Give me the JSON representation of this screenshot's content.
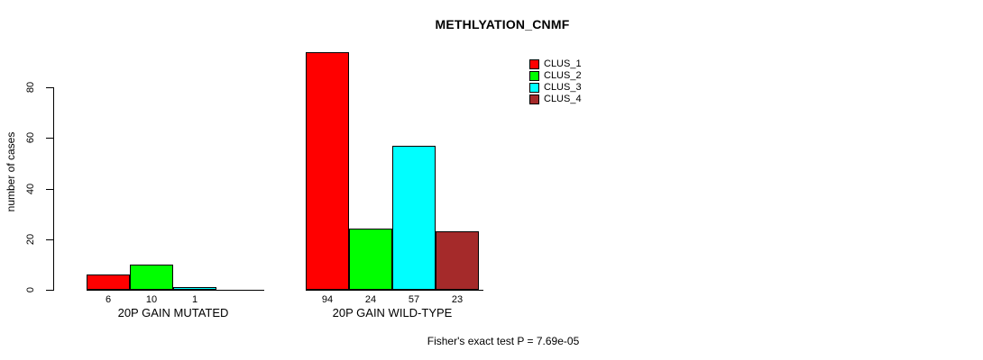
{
  "chart_data": {
    "type": "bar",
    "title": "METHLYATION_CNMF",
    "ylabel": "number of cases",
    "ylim": [
      0,
      80
    ],
    "yticks": [
      0,
      20,
      40,
      60,
      80
    ],
    "grid": false,
    "legend_position": "top-right",
    "background": "#FFFFFF",
    "axis_color": "#000000",
    "series": [
      {
        "name": "CLUS_1",
        "color": "#FF0000"
      },
      {
        "name": "CLUS_2",
        "color": "#00FF00"
      },
      {
        "name": "CLUS_3",
        "color": "#00FFFF"
      },
      {
        "name": "CLUS_4",
        "color": "#A52A2A"
      }
    ],
    "groups": [
      {
        "label": "20P GAIN MUTATED",
        "values": [
          6,
          10,
          1,
          0
        ],
        "value_labels": [
          "6",
          "10",
          "1",
          ""
        ]
      },
      {
        "label": "20P GAIN WILD-TYPE",
        "values": [
          94,
          24,
          57,
          23
        ],
        "value_labels": [
          "94",
          "24",
          "57",
          "23"
        ]
      }
    ],
    "annotation": "Fisher's exact test P = 7.69e-05"
  }
}
